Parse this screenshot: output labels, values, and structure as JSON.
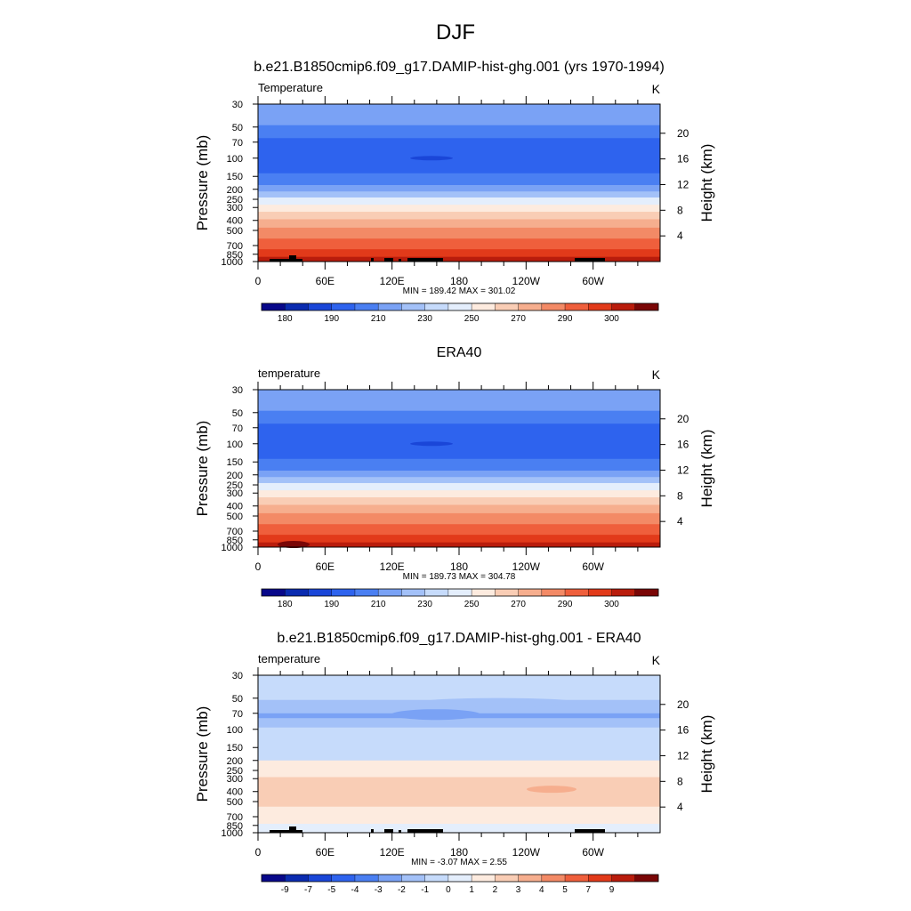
{
  "figure": {
    "title": "DJF"
  },
  "chart_data": [
    {
      "type": "heatmap",
      "title": "b.e21.B1850cmip6.f09_g17.DAMIP-hist-ghg.001 (yrs 1970-1994)",
      "left_label": "Temperature",
      "units": "K",
      "ylabel": "Pressure (mb)",
      "ylabel_right": "Height (km)",
      "pressure_ticks": [
        30,
        50,
        70,
        100,
        150,
        200,
        250,
        300,
        400,
        500,
        700,
        850,
        1000
      ],
      "height_ticks": [
        4,
        8,
        12,
        16,
        20
      ],
      "x_ticks": [
        "0",
        "60E",
        "120E",
        "180",
        "120W",
        "60W"
      ],
      "stats": "MIN = 189.42  MAX = 301.02",
      "colorbar_labels": [
        "180",
        "190",
        "210",
        "230",
        "250",
        "270",
        "290",
        "300"
      ]
    },
    {
      "type": "heatmap",
      "title": "ERA40",
      "left_label": "temperature",
      "units": "K",
      "ylabel": "Pressure (mb)",
      "ylabel_right": "Height (km)",
      "pressure_ticks": [
        30,
        50,
        70,
        100,
        150,
        200,
        250,
        300,
        400,
        500,
        700,
        850,
        1000
      ],
      "height_ticks": [
        4,
        8,
        12,
        16,
        20
      ],
      "x_ticks": [
        "0",
        "60E",
        "120E",
        "180",
        "120W",
        "60W"
      ],
      "stats": "MIN = 189.73  MAX = 304.78",
      "colorbar_labels": [
        "180",
        "190",
        "210",
        "230",
        "250",
        "270",
        "290",
        "300"
      ]
    },
    {
      "type": "heatmap",
      "title": "b.e21.B1850cmip6.f09_g17.DAMIP-hist-ghg.001 - ERA40",
      "left_label": "temperature",
      "units": "K",
      "ylabel": "Pressure (mb)",
      "ylabel_right": "Height (km)",
      "pressure_ticks": [
        30,
        50,
        70,
        100,
        150,
        200,
        250,
        300,
        400,
        500,
        700,
        850,
        1000
      ],
      "height_ticks": [
        4,
        8,
        12,
        16,
        20
      ],
      "x_ticks": [
        "0",
        "60E",
        "120E",
        "180",
        "120W",
        "60W"
      ],
      "stats": "MIN =  -3.07  MAX =   2.55",
      "colorbar_labels": [
        "-9",
        "-7",
        "-5",
        "-4",
        "-3",
        "-2",
        "-1",
        "0",
        "1",
        "2",
        "3",
        "4",
        "5",
        "7",
        "9"
      ]
    }
  ],
  "palette": [
    "#08088a",
    "#0a2bb0",
    "#1a46d8",
    "#2e63ee",
    "#4a7ff2",
    "#7aa2f5",
    "#a3c1f8",
    "#c6dbfb",
    "#e4eefc",
    "#fdebdf",
    "#f9cdb5",
    "#f6ae8e",
    "#f38a66",
    "#ef5f3c",
    "#e23a1a",
    "#b91c0c",
    "#7a0606"
  ]
}
